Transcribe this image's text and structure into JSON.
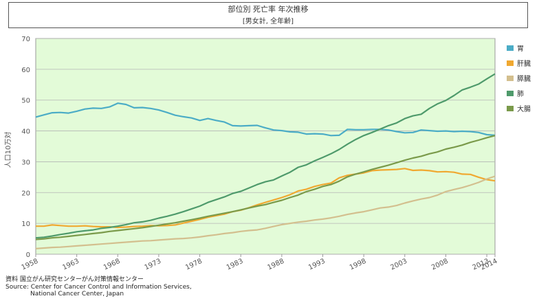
{
  "title": "部位別 死亡率 年次推移",
  "subtitle": "[男女計, 全年齢]",
  "source": {
    "line1": "資料 国立がん研究センターがん対策情報センター",
    "line2": "Source: Center for Cancer Control and Information Services,",
    "line3": "National Cancer Center, Japan"
  },
  "colors": {
    "plot_bg": "#e3fbd8",
    "grid": "#b5b5b5",
    "stomach": "#4bacc6",
    "liver": "#f0a830",
    "pancreas": "#d3bf8e",
    "lung": "#4e9a6b",
    "colon": "#7a9a4a"
  },
  "chart_data": {
    "type": "line",
    "title": "部位別 死亡率 年次推移",
    "subtitle": "[男女計, 全年齢]",
    "ylabel": "人口10万対",
    "xlabel": "",
    "ylim": [
      0,
      70
    ],
    "yticks": [
      "0",
      "10",
      "20",
      "30",
      "40",
      "50",
      "60",
      "70"
    ],
    "xlim": [
      1958,
      2014
    ],
    "xticks": [
      "1958",
      "1963",
      "1968",
      "1973",
      "1978",
      "1983",
      "1988",
      "1993",
      "1998",
      "2003",
      "2008",
      "2013",
      "2014"
    ],
    "grid": true,
    "legend_position": "right",
    "x": [
      1958,
      1959,
      1960,
      1961,
      1962,
      1963,
      1964,
      1965,
      1966,
      1967,
      1968,
      1969,
      1970,
      1971,
      1972,
      1973,
      1974,
      1975,
      1976,
      1977,
      1978,
      1979,
      1980,
      1981,
      1982,
      1983,
      1984,
      1985,
      1986,
      1987,
      1988,
      1989,
      1990,
      1991,
      1992,
      1993,
      1994,
      1995,
      1996,
      1997,
      1998,
      1999,
      2000,
      2001,
      2002,
      2003,
      2004,
      2005,
      2006,
      2007,
      2008,
      2009,
      2010,
      2011,
      2012,
      2013,
      2014
    ],
    "series": [
      {
        "name": "胃",
        "color_key": "stomach",
        "values": [
          44.5,
          45.2,
          45.9,
          46.0,
          45.8,
          46.4,
          47.1,
          47.4,
          47.3,
          47.8,
          49.0,
          48.6,
          47.5,
          47.6,
          47.3,
          46.8,
          46.0,
          45.1,
          44.6,
          44.2,
          43.4,
          44.0,
          43.4,
          42.9,
          41.7,
          41.6,
          41.7,
          41.8,
          41.0,
          40.3,
          40.1,
          39.7,
          39.6,
          39.0,
          39.1,
          39.0,
          38.5,
          38.6,
          40.5,
          40.4,
          40.4,
          40.5,
          40.5,
          40.3,
          39.8,
          39.4,
          39.5,
          40.3,
          40.1,
          39.9,
          40.0,
          39.8,
          39.9,
          39.8,
          39.5,
          38.8,
          38.6
        ]
      },
      {
        "name": "肝臓",
        "color_key": "liver",
        "values": [
          9.1,
          9.1,
          9.5,
          9.3,
          9.1,
          9.1,
          9.2,
          9.0,
          8.9,
          8.9,
          8.7,
          8.8,
          9.0,
          9.1,
          9.3,
          9.2,
          9.3,
          9.5,
          10.1,
          10.7,
          11.3,
          12.0,
          12.5,
          13.0,
          13.8,
          14.3,
          15.1,
          16.0,
          16.8,
          17.6,
          18.4,
          19.3,
          20.5,
          21.1,
          22.0,
          22.6,
          23.1,
          24.8,
          25.6,
          26.0,
          26.4,
          27.1,
          27.3,
          27.4,
          27.5,
          27.8,
          27.2,
          27.3,
          27.1,
          26.7,
          26.8,
          26.6,
          26.0,
          25.9,
          25.0,
          24.2,
          23.8
        ]
      },
      {
        "name": "膵臓",
        "color_key": "pancreas",
        "values": [
          1.8,
          2.0,
          2.2,
          2.3,
          2.5,
          2.7,
          2.9,
          3.1,
          3.3,
          3.5,
          3.7,
          3.9,
          4.1,
          4.3,
          4.4,
          4.6,
          4.8,
          5.0,
          5.1,
          5.3,
          5.6,
          6.0,
          6.3,
          6.7,
          7.0,
          7.4,
          7.7,
          7.9,
          8.4,
          9.0,
          9.6,
          10.0,
          10.4,
          10.7,
          11.1,
          11.4,
          11.8,
          12.3,
          12.9,
          13.4,
          13.8,
          14.4,
          15.0,
          15.3,
          15.8,
          16.6,
          17.3,
          17.9,
          18.4,
          19.2,
          20.3,
          21.0,
          21.6,
          22.4,
          23.3,
          24.4,
          25.3
        ]
      },
      {
        "name": "肺",
        "color_key": "lung",
        "values": [
          5.3,
          5.5,
          5.9,
          6.4,
          6.8,
          7.3,
          7.6,
          7.9,
          8.4,
          8.7,
          9.1,
          9.6,
          10.2,
          10.5,
          11.0,
          11.7,
          12.3,
          13.0,
          13.8,
          14.7,
          15.6,
          16.8,
          17.7,
          18.6,
          19.7,
          20.4,
          21.5,
          22.6,
          23.5,
          24.1,
          25.4,
          26.6,
          28.2,
          29.0,
          30.3,
          31.4,
          32.6,
          34.0,
          35.7,
          37.2,
          38.5,
          39.5,
          40.6,
          41.7,
          42.6,
          44.0,
          44.9,
          45.4,
          47.3,
          48.8,
          49.9,
          51.5,
          53.3,
          54.2,
          55.2,
          56.9,
          58.5
        ]
      },
      {
        "name": "大腸",
        "color_key": "colon",
        "values": [
          4.8,
          5.0,
          5.3,
          5.5,
          5.8,
          6.1,
          6.4,
          6.7,
          7.0,
          7.4,
          7.7,
          8.0,
          8.3,
          8.6,
          9.0,
          9.4,
          9.8,
          10.2,
          10.7,
          11.2,
          11.7,
          12.3,
          12.8,
          13.3,
          13.8,
          14.4,
          15.0,
          15.6,
          16.1,
          16.8,
          17.5,
          18.4,
          19.2,
          20.3,
          21.1,
          22.0,
          22.6,
          23.7,
          25.1,
          26.0,
          26.7,
          27.5,
          28.2,
          28.9,
          29.7,
          30.5,
          31.2,
          31.8,
          32.6,
          33.2,
          34.1,
          34.7,
          35.4,
          36.3,
          37.0,
          37.8,
          38.5
        ]
      }
    ]
  }
}
